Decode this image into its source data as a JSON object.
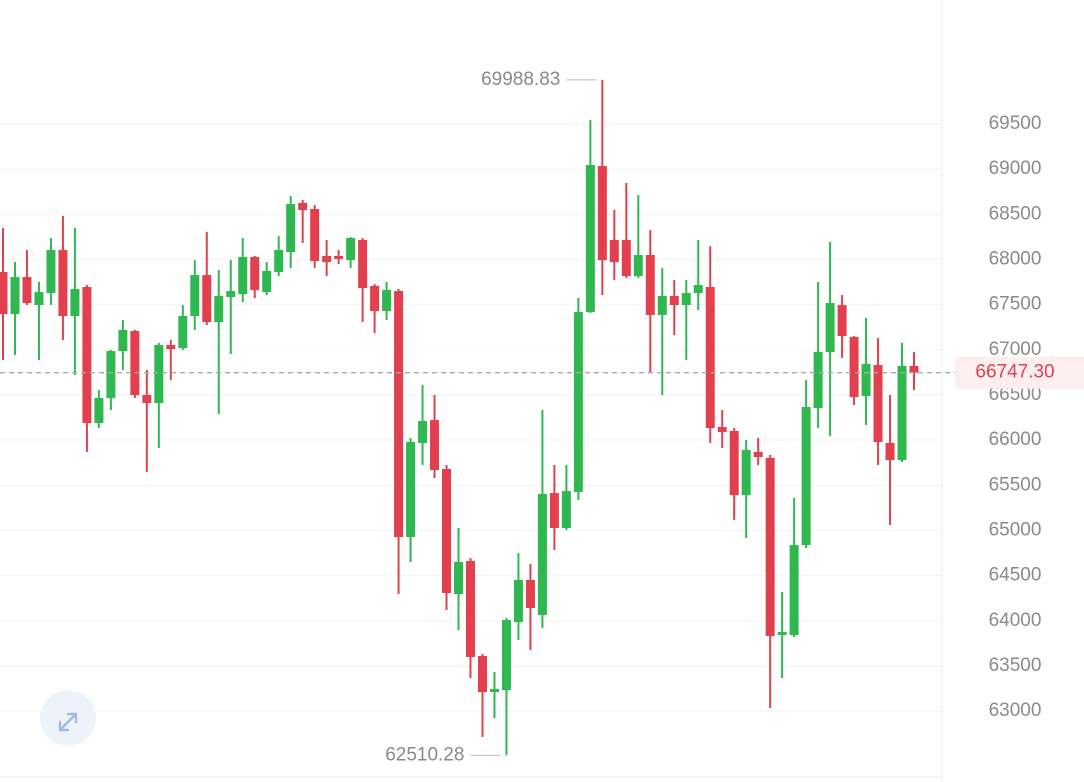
{
  "chart_data": {
    "type": "candlestick",
    "open": [
      67862,
      67397,
      67806,
      67496,
      67629,
      68105,
      67375,
      67696,
      66190,
      66467,
      66987,
      67209,
      66500,
      66411,
      67054,
      67020,
      67375,
      67828,
      67308,
      67585,
      67618,
      68028,
      67640,
      67862,
      68083,
      68626,
      68559,
      68039,
      68039,
      67994,
      68216,
      67707,
      67430,
      67651,
      64928,
      65969,
      66223,
      65681,
      64297,
      64662,
      63611,
      63212,
      63234,
      63987,
      64452,
      64065,
      65415,
      65028,
      65426,
      67419,
      69035,
      68216,
      68216,
      67817,
      68050,
      67386,
      67596,
      67496,
      67629,
      67696,
      66146,
      66102,
      65393,
      65869,
      65803,
      63843,
      63843,
      64839,
      66356,
      66976,
      67496,
      67142,
      66489,
      66832,
      65969,
      65781,
      66821
    ],
    "high": [
      68349,
      67972,
      68105,
      67751,
      68238,
      68482,
      68349,
      67718,
      66555,
      66998,
      67330,
      67220,
      66777,
      67076,
      67109,
      67496,
      67994,
      68305,
      67884,
      67994,
      68238,
      68039,
      67972,
      68260,
      68703,
      68659,
      68603,
      68216,
      68105,
      68249,
      68238,
      67729,
      67751,
      67673,
      66024,
      66611,
      66500,
      65725,
      65028,
      64696,
      63633,
      63434,
      64031,
      64751,
      64629,
      66334,
      65725,
      65725,
      67574,
      69544,
      69988.83,
      68548,
      68847,
      68714,
      68327,
      67906,
      67773,
      67773,
      68216,
      68149,
      66334,
      66135,
      66002,
      66024,
      65836,
      64319,
      65360,
      66666,
      67751,
      68194,
      67607,
      67153,
      67353,
      67131,
      66500,
      67076,
      66976
    ],
    "low": [
      66888,
      66943,
      67496,
      66888,
      67496,
      67109,
      66721,
      65869,
      66135,
      66334,
      66777,
      66467,
      65648,
      65913,
      66666,
      66998,
      67220,
      67275,
      66290,
      66954,
      67529,
      67574,
      67607,
      67817,
      67906,
      68183,
      67906,
      67817,
      67950,
      67906,
      67308,
      67186,
      67330,
      64297,
      64651,
      65725,
      65581,
      64120,
      63898,
      63367,
      62714,
      62924,
      62510.28,
      63788,
      63677,
      63921,
      64784,
      65006,
      65338,
      67408,
      67607,
      67773,
      67795,
      67795,
      66755,
      66500,
      67164,
      66888,
      67441,
      65969,
      65913,
      65116,
      64917,
      65725,
      63035,
      63367,
      63821,
      64806,
      66135,
      66046,
      66910,
      66389,
      66168,
      65725,
      65061,
      65759,
      66555
    ],
    "close": [
      67397,
      67806,
      67518,
      67640,
      68105,
      67375,
      67673,
      66190,
      66467,
      66987,
      67220,
      66500,
      66411,
      67054,
      67009,
      67375,
      67828,
      67308,
      67596,
      67651,
      68028,
      67662,
      67873,
      68105,
      68614,
      68548,
      67983,
      67972,
      68006,
      68238,
      67684,
      67430,
      67662,
      64928,
      65980,
      66212,
      65670,
      64308,
      64651,
      63600,
      63212,
      63246,
      64009,
      64452,
      64142,
      65404,
      65028,
      65437,
      67419,
      69046,
      67994,
      67972,
      67817,
      68050,
      67386,
      67596,
      67496,
      67629,
      67718,
      66135,
      66091,
      65393,
      65891,
      65814,
      63832,
      63876,
      64839,
      66367,
      66976,
      67518,
      67153,
      66478,
      66843,
      65980,
      65781,
      66821,
      66747.3
    ],
    "up_color": "#2eb84f",
    "down_color": "#e2404f",
    "ylim": [
      62216,
      70873
    ],
    "yticks": [
      63000,
      63500,
      64000,
      64500,
      65000,
      65500,
      66000,
      66500,
      67000,
      67500,
      68000,
      68500,
      69000,
      69500
    ],
    "grid": true,
    "max_price": 69988.83,
    "min_price": 62510.28,
    "last_price": {
      "value": 66747.3,
      "label": "66747.30"
    }
  }
}
